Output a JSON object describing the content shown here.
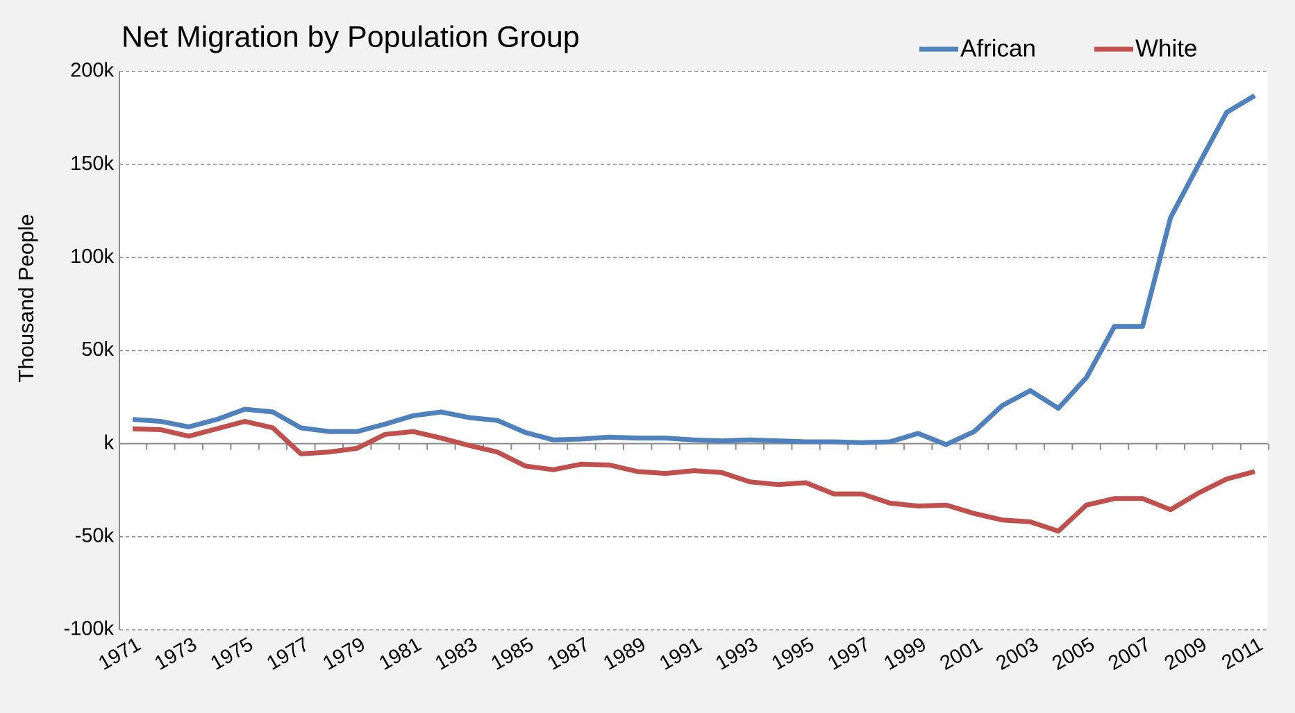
{
  "chart_data": {
    "type": "line",
    "title": "Net Migration by Population Group",
    "y_label": "Thousand People",
    "categories": [
      "1971",
      null,
      "1973",
      null,
      "1975",
      null,
      "1977",
      null,
      "1979",
      null,
      "1981",
      null,
      "1983",
      null,
      "1985",
      null,
      "1987",
      null,
      "1989",
      null,
      "1991",
      null,
      "1993",
      null,
      "1995",
      null,
      "1997",
      null,
      "1999",
      null,
      "2001",
      null,
      "2003",
      null,
      "2005",
      null,
      "2007",
      null,
      "2009",
      null,
      "2011"
    ],
    "series": [
      {
        "name": "African",
        "color": "#4f81bd",
        "values": [
          13000,
          12000,
          9000,
          13000,
          18500,
          17000,
          8500,
          6500,
          6500,
          10500,
          15000,
          17000,
          14000,
          12500,
          6000,
          2000,
          2500,
          3500,
          3000,
          3000,
          2000,
          1500,
          2000,
          1500,
          1000,
          1000,
          500,
          1000,
          5500,
          -500,
          6500,
          20500,
          28500,
          19000,
          35500,
          63000,
          63000,
          121500,
          150000,
          178000,
          187000
        ]
      },
      {
        "name": "White",
        "color": "#c0504d",
        "values": [
          8000,
          7500,
          4000,
          8000,
          12000,
          8500,
          -5500,
          -4500,
          -2500,
          5000,
          6500,
          3000,
          -1000,
          -4500,
          -12000,
          -14000,
          -11000,
          -11500,
          -15000,
          -16000,
          -14500,
          -15500,
          -20500,
          -22000,
          -21000,
          -27000,
          -27000,
          -32000,
          -33500,
          -33000,
          -37500,
          -41000,
          -42000,
          -47000,
          -33000,
          -29500,
          -29500,
          -35500,
          -26500,
          -19000,
          -15000
        ]
      }
    ],
    "ylim": [
      -100000,
      200000
    ],
    "yticks": [
      {
        "value": -100000,
        "label": "-100k"
      },
      {
        "value": -50000,
        "label": "-50k"
      },
      {
        "value": 0,
        "label": "k"
      },
      {
        "value": 50000,
        "label": "50k"
      },
      {
        "value": 100000,
        "label": "100k"
      },
      {
        "value": 150000,
        "label": "150k"
      },
      {
        "value": 200000,
        "label": "200k"
      }
    ],
    "grid": true,
    "legend": "top-right"
  }
}
